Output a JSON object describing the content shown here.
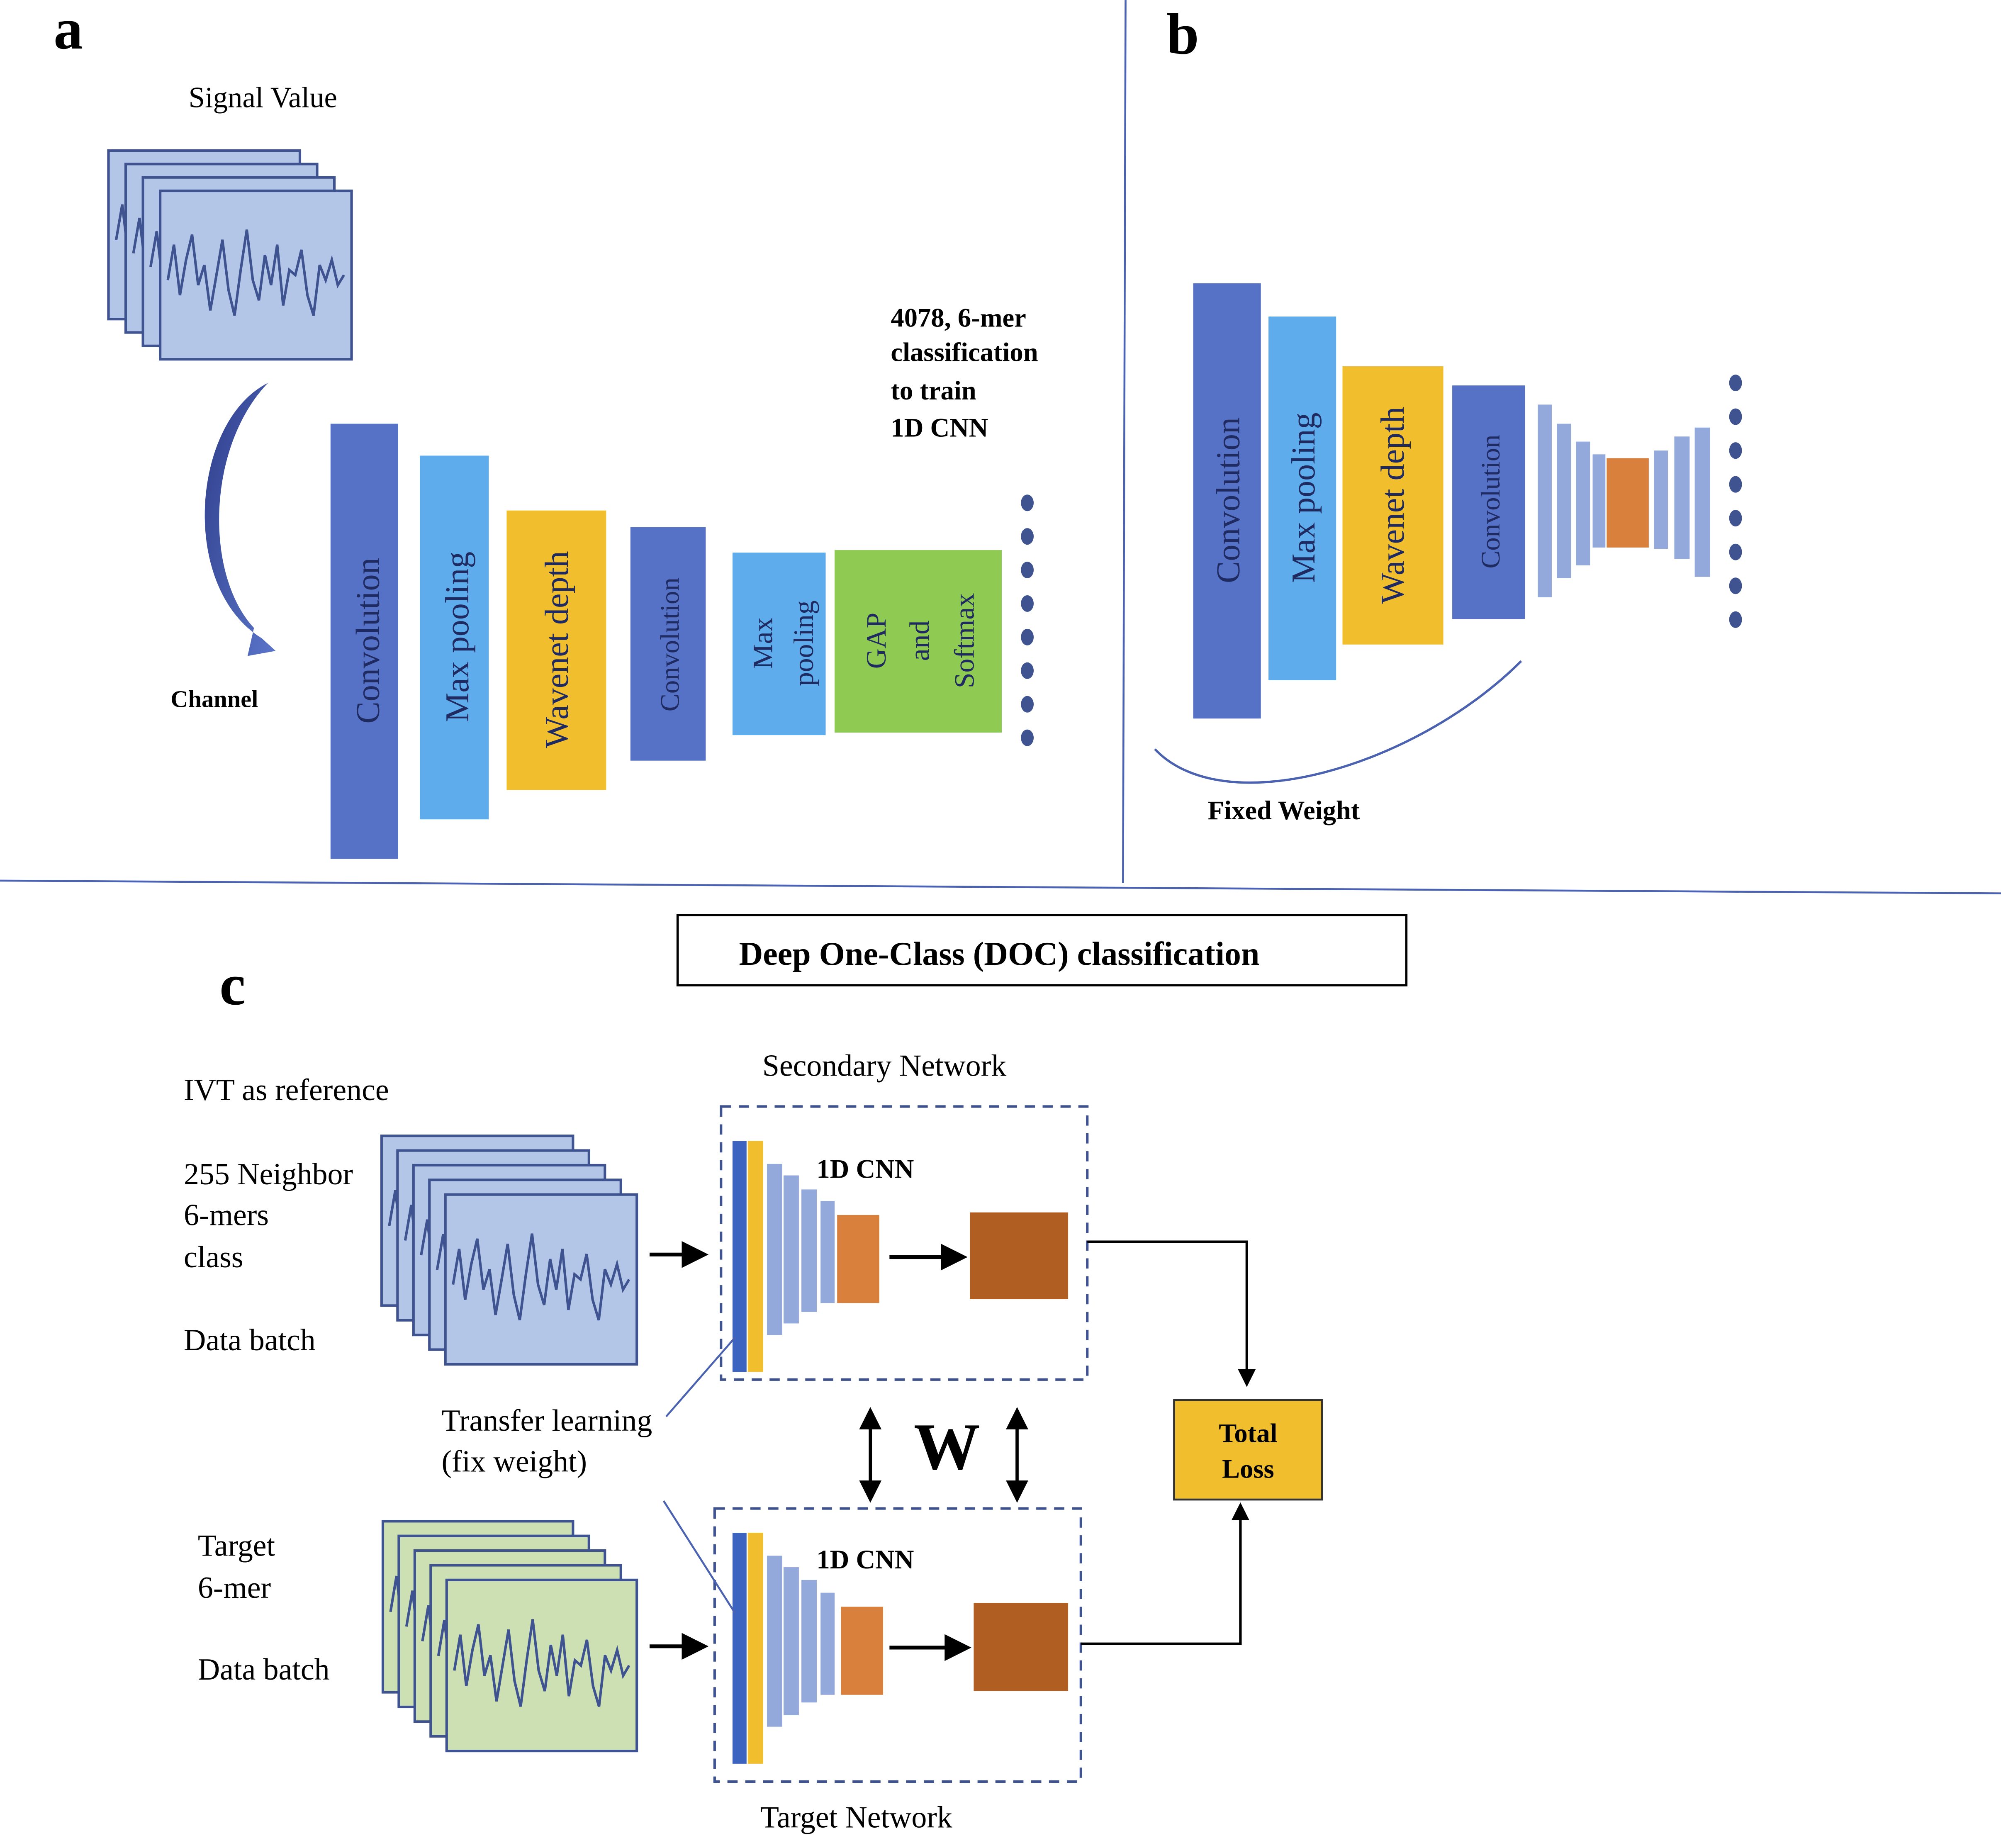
{
  "panels": {
    "a": {
      "letter": "a",
      "signal_label": "Signal Value",
      "channel_label": "Channel",
      "classification_note": [
        "4078,  6-mer",
        "classification",
        "to train",
        "1D CNN"
      ],
      "layers": [
        {
          "label": [
            "Convolution"
          ],
          "color": "#5672C6"
        },
        {
          "label": [
            "Max pooling"
          ],
          "color": "#5EACEC"
        },
        {
          "label": [
            "Wavenet depth"
          ],
          "color": "#F1BE2E"
        },
        {
          "label": [
            "Convolution"
          ],
          "color": "#5672C6"
        },
        {
          "label": [
            "Max",
            "pooling"
          ],
          "color": "#5EACEC"
        },
        {
          "label": [
            "GAP",
            "and",
            "Softmax"
          ],
          "color": "#8FCB53"
        }
      ]
    },
    "b": {
      "letter": "b",
      "layers": [
        {
          "label": "Convolution",
          "color": "#5672C6"
        },
        {
          "label": "Max pooling",
          "color": "#5EACEC"
        },
        {
          "label": "Wavenet depth",
          "color": "#F1BE2E"
        },
        {
          "label": "Convolution",
          "color": "#5672C6"
        }
      ],
      "fixed_weight_label": "Fixed Weight"
    },
    "c": {
      "letter": "c",
      "title": "Deep One-Class (DOC) classification",
      "reference_label": "IVT as reference",
      "neighbor_label": [
        "255 Neighbor",
        "6-mers",
        "class"
      ],
      "data_batch_label": "Data batch",
      "target_label": [
        "Target",
        "6-mer"
      ],
      "target_batch_label": "Data batch",
      "secondary_network_label": "Secondary Network",
      "target_network_label": "Target Network",
      "cnn_label": "1D CNN",
      "transfer_label": [
        "Transfer learning",
        "(fix weight)"
      ],
      "w_label": "W",
      "total_loss_label": [
        "Total",
        "Loss"
      ]
    }
  },
  "colors": {
    "signal_fill": "#B4C6E7",
    "target_fill": "#CCE0B4",
    "wave_line": "#3F5391",
    "conv": "#5672C6",
    "yellow": "#F1BE2E",
    "light_layer": "#94A9DB",
    "orange": "#D9803C",
    "brown": "#B05E22",
    "divider": "#4A62B0",
    "dot": "#3F5391"
  },
  "icons": {
    "curved_arrow": "curved-arrow-icon",
    "arrow": "arrow-right-icon",
    "double_arrow": "double-arrow-icon"
  }
}
